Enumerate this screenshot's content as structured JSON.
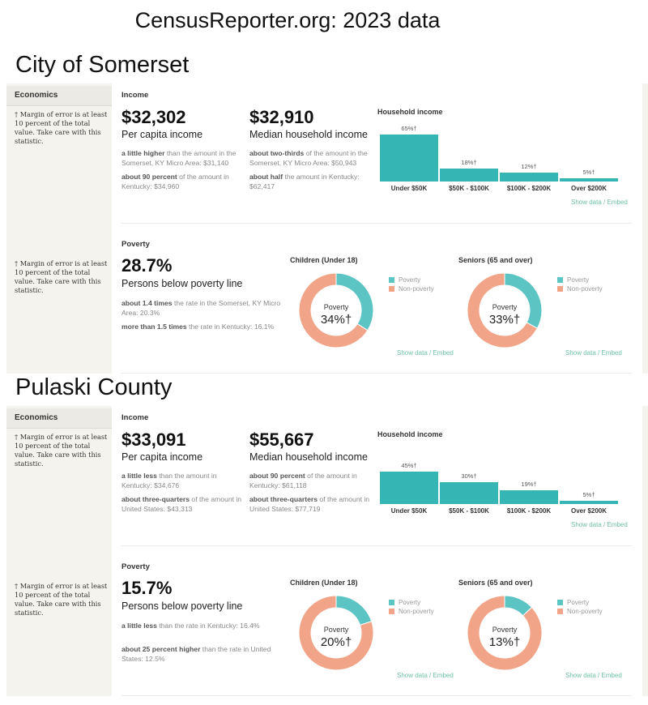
{
  "header": {
    "title": "CensusReporter.org: 2023 data"
  },
  "colors": {
    "bar": "#36b5b5",
    "poverty": "#5cc4c3",
    "non_poverty": "#f2a488",
    "link": "#6fbfa8"
  },
  "sections": [
    {
      "title": "City of Somerset",
      "sidebar": {
        "heading": "Economics",
        "note_income": "† Margin of error is at least 10 percent of the total value. Take care with this statistic.",
        "note_poverty": "† Margin of error is at least 10 percent of the total value. Take care with this statistic."
      },
      "income": {
        "label": "Income",
        "per_capita": {
          "value": "$32,302",
          "label": "Per capita income",
          "comparisons": [
            {
              "bold": "a little higher",
              "rest": " than the amount in the Somerset, KY Micro Area: $31,140"
            },
            {
              "bold": "about 90 percent",
              "rest": " of the amount in Kentucky: $34,960"
            }
          ]
        },
        "median": {
          "value": "$32,910",
          "label": "Median household income",
          "comparisons": [
            {
              "bold": "about two-thirds",
              "rest": " of the amount in the Somerset, KY Micro Area: $50,943"
            },
            {
              "bold": "about half",
              "rest": " the amount in Kentucky: $62,417"
            }
          ]
        },
        "chart": {
          "type": "bar",
          "title": "Household income",
          "categories": [
            "Under $50K",
            "$50K - $100K",
            "$100K - $200K",
            "Over $200K"
          ],
          "values": [
            65,
            18,
            12,
            5
          ],
          "value_labels": [
            "65%†",
            "18%†",
            "12%†",
            "5%†"
          ],
          "link": "Show data / Embed"
        }
      },
      "poverty": {
        "label": "Poverty",
        "value": "28.7%",
        "caption": "Persons below poverty line",
        "comparisons": [
          {
            "bold": "about 1.4 times",
            "rest": " the rate in the Somerset, KY Micro Area: 20.3%"
          },
          {
            "bold": "more than 1.5 times",
            "rest": " the rate in Kentucky: 16.1%"
          }
        ],
        "charts": [
          {
            "type": "pie",
            "title": "Children (Under 18)",
            "center_label": "Poverty",
            "center_value": "34%†",
            "values": [
              34,
              66
            ],
            "legend": [
              "Poverty",
              "Non-poverty"
            ],
            "link": "Show data / Embed"
          },
          {
            "type": "pie",
            "title": "Seniors (65 and over)",
            "center_label": "Poverty",
            "center_value": "33%†",
            "values": [
              33,
              67
            ],
            "legend": [
              "Poverty",
              "Non-poverty"
            ],
            "link": "Show data / Embed"
          }
        ]
      }
    },
    {
      "title": "Pulaski County",
      "sidebar": {
        "heading": "Economics",
        "note_income": "† Margin of error is at least 10 percent of the total value. Take care with this statistic.",
        "note_poverty": "† Margin of error is at least 10 percent of the total value. Take care with this statistic."
      },
      "income": {
        "label": "Income",
        "per_capita": {
          "value": "$33,091",
          "label": "Per capita income",
          "comparisons": [
            {
              "bold": "a little less",
              "rest": " than the amount in Kentucky: $34,676"
            },
            {
              "bold": "about three-quarters",
              "rest": " of the amount in United States: $43,313"
            }
          ]
        },
        "median": {
          "value": "$55,667",
          "label": "Median household income",
          "comparisons": [
            {
              "bold": "about 90 percent",
              "rest": " of the amount in Kentucky: $61,118"
            },
            {
              "bold": "about three-quarters",
              "rest": " of the amount in United States: $77,719"
            }
          ]
        },
        "chart": {
          "type": "bar",
          "title": "Household income",
          "categories": [
            "Under $50K",
            "$50K - $100K",
            "$100K - $200K",
            "Over $200K"
          ],
          "values": [
            45,
            30,
            19,
            5
          ],
          "value_labels": [
            "45%†",
            "30%†",
            "19%†",
            "5%†"
          ],
          "link": "Show data / Embed"
        }
      },
      "poverty": {
        "label": "Poverty",
        "value": "15.7%",
        "caption": "Persons below poverty line",
        "comparisons": [
          {
            "bold": "a little less",
            "rest": " than the rate in Kentucky: 16.4%"
          },
          {
            "bold": "about 25 percent higher",
            "rest": " than the rate in United States: 12.5%"
          }
        ],
        "charts": [
          {
            "type": "pie",
            "title": "Children (Under 18)",
            "center_label": "Poverty",
            "center_value": "20%†",
            "values": [
              20,
              80
            ],
            "legend": [
              "Poverty",
              "Non-poverty"
            ],
            "link": "Show data / Embed"
          },
          {
            "type": "pie",
            "title": "Seniors (65 and over)",
            "center_label": "Poverty",
            "center_value": "13%†",
            "values": [
              13,
              87
            ],
            "legend": [
              "Poverty",
              "Non-poverty"
            ],
            "link": "Show data / Embed"
          }
        ]
      }
    }
  ]
}
